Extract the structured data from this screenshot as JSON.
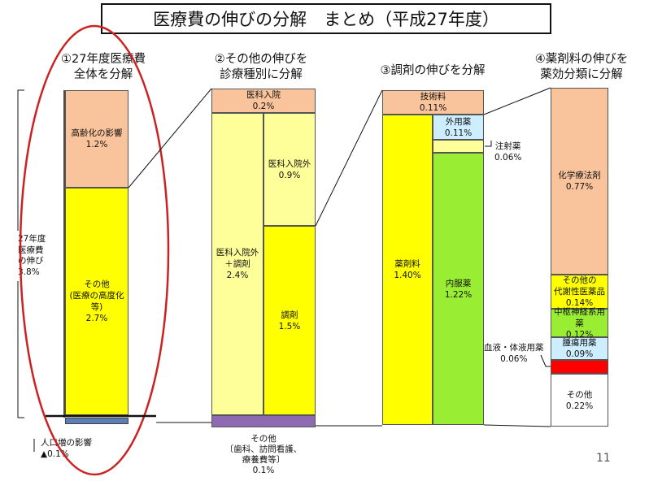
{
  "title": "医療費の伸びの分解　まとめ（平成27年度）",
  "page_number": "11",
  "colors": {
    "orange": "#f9c39b",
    "yellow": "#ffff00",
    "light_yellow": "#ffff99",
    "green": "#99ee33",
    "light_blue": "#cceeff",
    "red": "#ff0000",
    "purple": "#8e6bb0",
    "blue": "#5b7fb5",
    "highlight_oval": "#cc2222"
  },
  "panel1": {
    "heading_line1": "①27年度医療費",
    "heading_line2": "全体を分解",
    "side_label": [
      "27年度",
      "医療費",
      "の伸び",
      "3.8%"
    ],
    "segments": [
      {
        "name": "高齢化の影響",
        "value": "1.2%"
      },
      {
        "name": "その他",
        "sub": "(医療の高度化等)",
        "value": "2.7%"
      }
    ],
    "population": {
      "name": "人口増の影響",
      "value": "▲0.1%"
    }
  },
  "panel2": {
    "heading_line1": "②その他の伸びを",
    "heading_line2": "診療種別に分解",
    "top": {
      "name": "医科入院",
      "value": "0.2%"
    },
    "left": {
      "name_line1": "医科入院外",
      "name_line2": "＋調剤",
      "value": "2.4%"
    },
    "right_top": {
      "name": "医科入院外",
      "value": "0.9%"
    },
    "right_bottom": {
      "name": "調剤",
      "value": "1.5%"
    },
    "other": {
      "name": "その他",
      "detail_line1": "歯科、訪問看護、",
      "detail_line2": "療養費等",
      "value": "0.1%",
      "bracket_left": "〔",
      "bracket_right": "〕"
    }
  },
  "panel3": {
    "heading": "③調剤の伸びを分解",
    "top": {
      "name": "技術料",
      "value": "0.11%"
    },
    "left": {
      "name": "薬剤料",
      "value": "1.40%"
    },
    "gaiyo": {
      "name": "外用薬",
      "value": "0.11%"
    },
    "chusha": {
      "name": "注射薬",
      "value": "0.06%"
    },
    "naifuku": {
      "name": "内服薬",
      "value": "1.22%"
    }
  },
  "panel4": {
    "heading_line1": "④薬剤料の伸びを",
    "heading_line2": "薬効分類に分解",
    "segments": [
      {
        "name": "化学療法剤",
        "value": "0.77%"
      },
      {
        "name_line1": "その他の",
        "name_line2": "代謝性医薬品",
        "value": "0.14%"
      },
      {
        "name": "中枢神経系用薬",
        "value": "0.12%"
      },
      {
        "name": "腫瘍用薬",
        "value": "0.09%"
      },
      {
        "name": "その他",
        "value": "0.22%"
      }
    ],
    "blood": {
      "name": "血液・体液用薬",
      "value": "0.06%"
    }
  }
}
